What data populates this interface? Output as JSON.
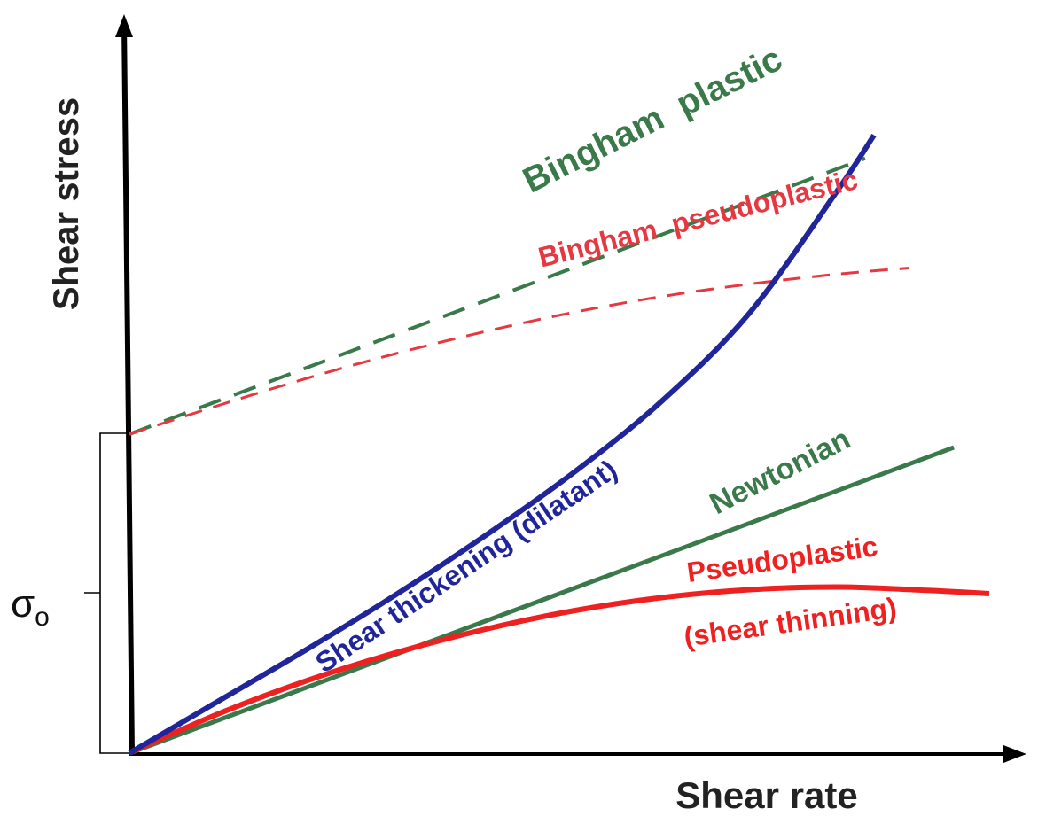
{
  "chart_data": {
    "type": "line",
    "title": "",
    "xlabel": "Shear rate",
    "ylabel": "Shear stress",
    "xlim": [
      0,
      1
    ],
    "ylim": [
      0,
      1
    ],
    "grid": false,
    "legend": "none (inline curve labels)",
    "yield_stress_label": "σ",
    "yield_stress_subscript": "o",
    "series": [
      {
        "name": "Bingham  plastic",
        "color": "#3a7a4a",
        "style": "dashed",
        "x": [
          0.0,
          0.2,
          0.4,
          0.6,
          0.8,
          0.83
        ],
        "y": [
          0.48,
          0.58,
          0.68,
          0.78,
          0.88,
          0.895
        ]
      },
      {
        "name": "Bingham  pseudoplastic",
        "color": "#e53840",
        "style": "dashed",
        "x": [
          0.0,
          0.1,
          0.2,
          0.3,
          0.4,
          0.5,
          0.6,
          0.7,
          0.8,
          0.88
        ],
        "y": [
          0.48,
          0.523,
          0.564,
          0.601,
          0.634,
          0.663,
          0.687,
          0.706,
          0.721,
          0.73
        ]
      },
      {
        "name": "Shear thickening (dilatant)",
        "color": "#20269a",
        "style": "solid",
        "x": [
          0.0,
          0.1,
          0.2,
          0.3,
          0.4,
          0.5,
          0.6,
          0.7,
          0.8,
          0.84
        ],
        "y": [
          0.0,
          0.078,
          0.156,
          0.238,
          0.326,
          0.421,
          0.529,
          0.663,
          0.849,
          0.93
        ]
      },
      {
        "name": "Newtonian",
        "color": "#3a7a4a",
        "style": "solid",
        "x": [
          0.0,
          0.93
        ],
        "y": [
          0.0,
          0.46
        ]
      },
      {
        "name": "Pseudoplastic (shear thinning)",
        "label_line1": "Pseudoplastic",
        "label_line2": "(shear thinning)",
        "color": "#ef2020",
        "style": "solid",
        "x": [
          0.0,
          0.1,
          0.2,
          0.3,
          0.4,
          0.5,
          0.6,
          0.7,
          0.8,
          0.9,
          0.97
        ],
        "y": [
          0.0,
          0.059,
          0.109,
          0.151,
          0.186,
          0.214,
          0.234,
          0.246,
          0.25,
          0.245,
          0.24
        ]
      }
    ]
  }
}
